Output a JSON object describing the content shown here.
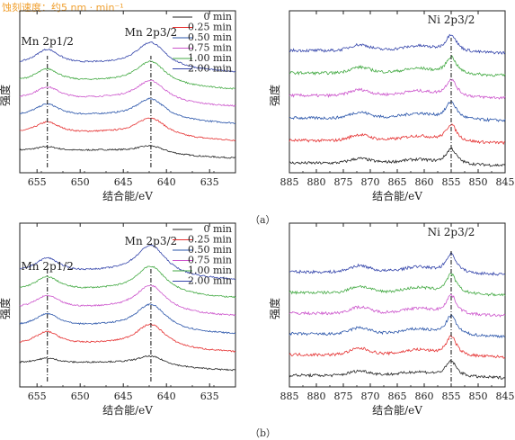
{
  "header_note": "蚀刻速度：约5 nm · min⁻¹",
  "panel_labels": [
    "（a）",
    "（b）"
  ],
  "colors": {
    "0 min": "#222222",
    "0.25 min": "#e53030",
    "0.50 min": "#2a55aa",
    "0.75 min": "#cc55cc",
    "1.00 min": "#44aa44",
    "2.00 min": "#3344aa"
  },
  "chart_data": [
    {
      "id": "a-mn",
      "type": "line",
      "panel": "a",
      "title": "",
      "xlabel": "结合能/eV",
      "ylabel": "强度",
      "xlim": [
        657,
        632
      ],
      "xticks": [
        655,
        650,
        645,
        640,
        635
      ],
      "legend": [
        "0 min",
        "0.25 min",
        "0.50 min",
        "0.75 min",
        "1.00 min",
        "2.00 min"
      ],
      "legend_position": "top-right",
      "annotations": [
        {
          "text": "Mn 2p1/2",
          "x": 653.8
        },
        {
          "text": "Mn 2p3/2",
          "x": 641.8
        }
      ],
      "series": [
        {
          "name": "0 min",
          "peak1": 0.3,
          "peak2": 0.45
        },
        {
          "name": "0.25 min",
          "peak1": 0.75,
          "peak2": 1.0
        },
        {
          "name": "0.50 min",
          "peak1": 0.8,
          "peak2": 1.1
        },
        {
          "name": "0.75 min",
          "peak1": 0.8,
          "peak2": 1.15
        },
        {
          "name": "1.00 min",
          "peak1": 0.85,
          "peak2": 1.25
        },
        {
          "name": "2.00 min",
          "peak1": 1.0,
          "peak2": 1.35
        }
      ]
    },
    {
      "id": "a-ni",
      "type": "line",
      "panel": "a",
      "title": "",
      "xlabel": "结合能/eV",
      "ylabel": "强度",
      "xlim": [
        885,
        845
      ],
      "xticks": [
        885,
        880,
        875,
        870,
        865,
        860,
        855,
        850,
        845
      ],
      "annotations": [
        {
          "text": "Ni 2p3/2",
          "x": 855.0
        }
      ],
      "series": [
        {
          "name": "0 min",
          "sat": 0.45,
          "peak": 0.8
        },
        {
          "name": "0.25 min",
          "sat": 0.6,
          "peak": 0.9
        },
        {
          "name": "0.50 min",
          "sat": 0.6,
          "peak": 0.9
        },
        {
          "name": "0.75 min",
          "sat": 0.6,
          "peak": 0.9
        },
        {
          "name": "1.00 min",
          "sat": 0.6,
          "peak": 0.9
        },
        {
          "name": "2.00 min",
          "sat": 0.6,
          "peak": 0.9
        }
      ]
    },
    {
      "id": "b-mn",
      "type": "line",
      "panel": "b",
      "title": "",
      "xlabel": "结合能/eV",
      "ylabel": "强度",
      "xlim": [
        657,
        632
      ],
      "xticks": [
        655,
        650,
        645,
        640,
        635
      ],
      "legend": [
        "0 min",
        "0.25 min",
        "0.50 min",
        "0.75 min",
        "1.00 min",
        "2.00 min"
      ],
      "legend_position": "top-right",
      "annotations": [
        {
          "text": "Mn 2p1/2",
          "x": 653.8
        },
        {
          "text": "Mn 2p3/2",
          "x": 641.8
        }
      ],
      "series": [
        {
          "name": "0 min",
          "peak1": 0.35,
          "peak2": 0.55
        },
        {
          "name": "0.25 min",
          "peak1": 0.85,
          "peak2": 1.25
        },
        {
          "name": "0.50 min",
          "peak1": 0.85,
          "peak2": 1.35
        },
        {
          "name": "0.75 min",
          "peak1": 0.85,
          "peak2": 1.4
        },
        {
          "name": "1.00 min",
          "peak1": 0.9,
          "peak2": 1.45
        },
        {
          "name": "2.00 min",
          "peak1": 0.95,
          "peak2": 1.6
        }
      ]
    },
    {
      "id": "b-ni",
      "type": "line",
      "panel": "b",
      "title": "",
      "xlabel": "结合能/eV",
      "ylabel": "强度",
      "xlim": [
        885,
        845
      ],
      "xticks": [
        885,
        880,
        875,
        870,
        865,
        860,
        855,
        850,
        845
      ],
      "annotations": [
        {
          "text": "Ni 2p3/2",
          "x": 855.0
        }
      ],
      "series": [
        {
          "name": "0 min",
          "sat": 0.45,
          "peak": 0.8
        },
        {
          "name": "0.25 min",
          "sat": 0.65,
          "peak": 1.0
        },
        {
          "name": "0.50 min",
          "sat": 0.65,
          "peak": 1.0
        },
        {
          "name": "0.75 min",
          "sat": 0.65,
          "peak": 1.0
        },
        {
          "name": "1.00 min",
          "sat": 0.65,
          "peak": 1.0
        },
        {
          "name": "2.00 min",
          "sat": 0.65,
          "peak": 1.0
        }
      ]
    }
  ]
}
